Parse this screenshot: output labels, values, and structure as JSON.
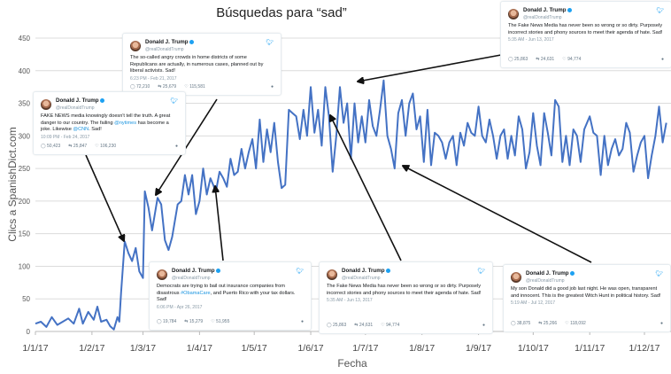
{
  "chart_data": {
    "type": "line",
    "title": "Búsquedas para “sad”",
    "xlabel": "Fecha",
    "ylabel": "Clics a SpanishDict.com",
    "ylim": [
      0,
      450
    ],
    "yticks": [
      0,
      50,
      100,
      150,
      200,
      250,
      300,
      350,
      400,
      450
    ],
    "xticks": [
      "1/1/17",
      "1/2/17",
      "1/3/17",
      "1/4/17",
      "1/5/17",
      "1/6/17",
      "1/7/17",
      "1/8/17",
      "1/9/17",
      "1/10/17",
      "1/11/17",
      "1/12/17"
    ],
    "grid": "horizontal",
    "line_color": "#4472c4",
    "series": [
      {
        "points": [
          [
            "2017-01-01",
            12
          ],
          [
            "2017-01-04",
            15
          ],
          [
            "2017-01-07",
            7
          ],
          [
            "2017-01-10",
            22
          ],
          [
            "2017-01-13",
            10
          ],
          [
            "2017-01-16",
            15
          ],
          [
            "2017-01-19",
            20
          ],
          [
            "2017-01-22",
            12
          ],
          [
            "2017-01-25",
            35
          ],
          [
            "2017-01-27",
            12
          ],
          [
            "2017-01-30",
            30
          ],
          [
            "2017-02-02",
            18
          ],
          [
            "2017-02-04",
            38
          ],
          [
            "2017-02-06",
            15
          ],
          [
            "2017-02-09",
            18
          ],
          [
            "2017-02-11",
            8
          ],
          [
            "2017-02-13",
            3
          ],
          [
            "2017-02-15",
            22
          ],
          [
            "2017-02-16",
            15
          ],
          [
            "2017-02-17",
            60
          ],
          [
            "2017-02-19",
            138
          ],
          [
            "2017-02-21",
            120
          ],
          [
            "2017-02-23",
            108
          ],
          [
            "2017-02-25",
            128
          ],
          [
            "2017-02-27",
            92
          ],
          [
            "2017-03-01",
            82
          ],
          [
            "2017-03-02",
            215
          ],
          [
            "2017-03-04",
            190
          ],
          [
            "2017-03-06",
            155
          ],
          [
            "2017-03-09",
            205
          ],
          [
            "2017-03-11",
            195
          ],
          [
            "2017-03-13",
            140
          ],
          [
            "2017-03-15",
            125
          ],
          [
            "2017-03-17",
            145
          ],
          [
            "2017-03-20",
            195
          ],
          [
            "2017-03-22",
            200
          ],
          [
            "2017-03-24",
            240
          ],
          [
            "2017-03-26",
            210
          ],
          [
            "2017-03-28",
            240
          ],
          [
            "2017-03-30",
            180
          ],
          [
            "2017-04-01",
            200
          ],
          [
            "2017-04-03",
            250
          ],
          [
            "2017-04-05",
            210
          ],
          [
            "2017-04-07",
            235
          ],
          [
            "2017-04-10",
            215
          ],
          [
            "2017-04-12",
            245
          ],
          [
            "2017-04-14",
            235
          ],
          [
            "2017-04-16",
            222
          ],
          [
            "2017-04-18",
            265
          ],
          [
            "2017-04-20",
            240
          ],
          [
            "2017-04-22",
            245
          ],
          [
            "2017-04-24",
            280
          ],
          [
            "2017-04-26",
            250
          ],
          [
            "2017-04-28",
            275
          ],
          [
            "2017-04-30",
            295
          ],
          [
            "2017-05-02",
            250
          ],
          [
            "2017-05-04",
            325
          ],
          [
            "2017-05-06",
            260
          ],
          [
            "2017-05-08",
            310
          ],
          [
            "2017-05-10",
            275
          ],
          [
            "2017-05-12",
            320
          ],
          [
            "2017-05-14",
            260
          ],
          [
            "2017-05-16",
            220
          ],
          [
            "2017-05-18",
            225
          ],
          [
            "2017-05-20",
            340
          ],
          [
            "2017-05-22",
            335
          ],
          [
            "2017-05-24",
            330
          ],
          [
            "2017-05-26",
            295
          ],
          [
            "2017-05-28",
            340
          ],
          [
            "2017-05-30",
            300
          ],
          [
            "2017-06-01",
            375
          ],
          [
            "2017-06-03",
            305
          ],
          [
            "2017-06-05",
            340
          ],
          [
            "2017-06-07",
            285
          ],
          [
            "2017-06-09",
            375
          ],
          [
            "2017-06-11",
            330
          ],
          [
            "2017-06-13",
            245
          ],
          [
            "2017-06-15",
            300
          ],
          [
            "2017-06-17",
            375
          ],
          [
            "2017-06-19",
            320
          ],
          [
            "2017-06-21",
            350
          ],
          [
            "2017-06-23",
            265
          ],
          [
            "2017-06-25",
            350
          ],
          [
            "2017-06-27",
            290
          ],
          [
            "2017-06-29",
            330
          ],
          [
            "2017-07-01",
            290
          ],
          [
            "2017-07-03",
            355
          ],
          [
            "2017-07-05",
            315
          ],
          [
            "2017-07-07",
            300
          ],
          [
            "2017-07-09",
            340
          ],
          [
            "2017-07-11",
            385
          ],
          [
            "2017-07-13",
            300
          ],
          [
            "2017-07-15",
            280
          ],
          [
            "2017-07-17",
            250
          ],
          [
            "2017-07-19",
            335
          ],
          [
            "2017-07-21",
            355
          ],
          [
            "2017-07-23",
            300
          ],
          [
            "2017-07-25",
            350
          ],
          [
            "2017-07-27",
            365
          ],
          [
            "2017-07-29",
            310
          ],
          [
            "2017-07-31",
            330
          ],
          [
            "2017-08-02",
            260
          ],
          [
            "2017-08-04",
            340
          ],
          [
            "2017-08-06",
            255
          ],
          [
            "2017-08-08",
            305
          ],
          [
            "2017-08-10",
            300
          ],
          [
            "2017-08-12",
            290
          ],
          [
            "2017-08-14",
            265
          ],
          [
            "2017-08-16",
            290
          ],
          [
            "2017-08-18",
            300
          ],
          [
            "2017-08-20",
            255
          ],
          [
            "2017-08-22",
            305
          ],
          [
            "2017-08-24",
            285
          ],
          [
            "2017-08-26",
            320
          ],
          [
            "2017-08-28",
            305
          ],
          [
            "2017-08-30",
            300
          ],
          [
            "2017-09-01",
            345
          ],
          [
            "2017-09-03",
            300
          ],
          [
            "2017-09-05",
            290
          ],
          [
            "2017-09-07",
            325
          ],
          [
            "2017-09-09",
            300
          ],
          [
            "2017-09-11",
            265
          ],
          [
            "2017-09-13",
            300
          ],
          [
            "2017-09-15",
            310
          ],
          [
            "2017-09-17",
            265
          ],
          [
            "2017-09-19",
            300
          ],
          [
            "2017-09-21",
            270
          ],
          [
            "2017-09-23",
            330
          ],
          [
            "2017-09-25",
            310
          ],
          [
            "2017-09-27",
            250
          ],
          [
            "2017-09-29",
            275
          ],
          [
            "2017-10-01",
            335
          ],
          [
            "2017-10-03",
            285
          ],
          [
            "2017-10-05",
            255
          ],
          [
            "2017-10-07",
            335
          ],
          [
            "2017-10-09",
            305
          ],
          [
            "2017-10-11",
            270
          ],
          [
            "2017-10-13",
            355
          ],
          [
            "2017-10-15",
            345
          ],
          [
            "2017-10-17",
            260
          ],
          [
            "2017-10-19",
            300
          ],
          [
            "2017-10-21",
            255
          ],
          [
            "2017-10-23",
            310
          ],
          [
            "2017-10-25",
            300
          ],
          [
            "2017-10-27",
            260
          ],
          [
            "2017-10-29",
            310
          ],
          [
            "2017-11-01",
            330
          ],
          [
            "2017-11-03",
            305
          ],
          [
            "2017-11-05",
            300
          ],
          [
            "2017-11-07",
            240
          ],
          [
            "2017-11-09",
            300
          ],
          [
            "2017-11-11",
            255
          ],
          [
            "2017-11-13",
            280
          ],
          [
            "2017-11-15",
            295
          ],
          [
            "2017-11-17",
            270
          ],
          [
            "2017-11-19",
            280
          ],
          [
            "2017-11-21",
            320
          ],
          [
            "2017-11-23",
            305
          ],
          [
            "2017-11-25",
            245
          ],
          [
            "2017-11-27",
            270
          ],
          [
            "2017-11-29",
            290
          ],
          [
            "2017-12-01",
            300
          ],
          [
            "2017-12-03",
            235
          ],
          [
            "2017-12-05",
            270
          ],
          [
            "2017-12-07",
            300
          ],
          [
            "2017-12-09",
            345
          ],
          [
            "2017-12-11",
            290
          ],
          [
            "2017-12-13",
            320
          ]
        ]
      }
    ]
  },
  "tweets": [
    {
      "name": "Donald J. Trump",
      "handle": "@realDonaldTrump",
      "text": [
        {
          "t": "The so-called angry crowds in home districts of some Republicans are actually, in numerous cases, planned out by liberal activists. Sad!"
        }
      ],
      "time": "6:23 PM - Feb 21, 2017",
      "replies": "72,210",
      "retweets": "25,679",
      "likes": "115,581"
    },
    {
      "name": "Donald J. Trump",
      "handle": "@realDonaldTrump",
      "text": [
        {
          "t": "FAKE NEWS media knowingly doesn't tell the truth. A great danger to our country. The failing "
        },
        {
          "t": "@nytimes",
          "link": true
        },
        {
          "t": " has become a joke. Likewise "
        },
        {
          "t": "@CNN",
          "link": true
        },
        {
          "t": ". Sad!"
        }
      ],
      "time": "10:09 PM - Feb 24, 2017",
      "replies": "50,423",
      "retweets": "25,847",
      "likes": "106,230"
    },
    {
      "name": "Donald J. Trump",
      "handle": "@realDonaldTrump",
      "text": [
        {
          "t": "The Fake News Media has never been so wrong or so dirty. Purposely incorrect stories and phony sources to meet their agenda of hate. Sad!"
        }
      ],
      "time": "5:35 AM - Jun 13, 2017",
      "replies": "25,863",
      "retweets": "24,631",
      "likes": "94,774"
    },
    {
      "name": "Donald J. Trump",
      "handle": "@realDonaldTrump",
      "text": [
        {
          "t": "Democrats are trying to bail out insurance companies from disastrous "
        },
        {
          "t": "#ObamaCare",
          "link": true
        },
        {
          "t": ", and Puerto Rico with your tax dollars. Sad!"
        }
      ],
      "time": "6:06 PM - Apr 26, 2017",
      "replies": "19,784",
      "retweets": "15,279",
      "likes": "51,955"
    },
    {
      "name": "Donald J. Trump",
      "handle": "@realDonaldTrump",
      "text": [
        {
          "t": "The Fake News Media has never been so wrong or so dirty. Purposely incorrect stories and phony sources to meet their agenda of hate. Sad!"
        }
      ],
      "time": "5:35 AM - Jun 13, 2017",
      "replies": "25,863",
      "retweets": "24,631",
      "likes": "94,774"
    },
    {
      "name": "Donald J. Trump",
      "handle": "@realDonaldTrump",
      "text": [
        {
          "t": "My son Donald did a good job last night. He was open, transparent and innocent. This is the greatest Witch Hunt in political history. Sad!"
        }
      ],
      "time": "5:19 AM - Jul 12, 2017",
      "replies": "38,875",
      "retweets": "25,266",
      "likes": "118,092"
    }
  ]
}
